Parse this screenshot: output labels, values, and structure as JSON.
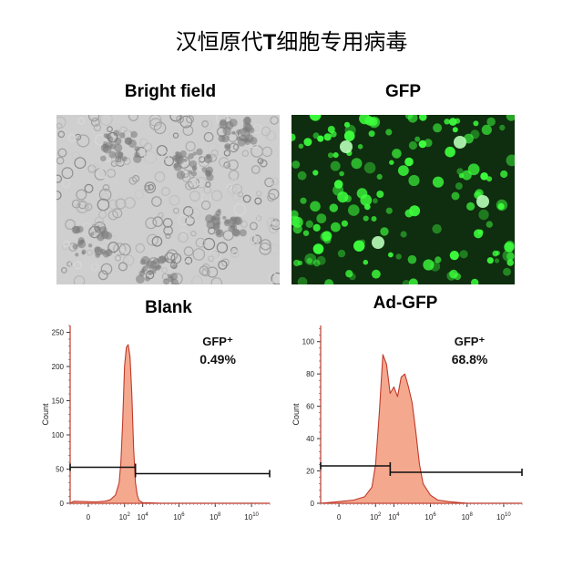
{
  "figure": {
    "title_cn": "汉恒原代",
    "title_t": "T",
    "title_cn2": "细胞专用病毒"
  },
  "panels": {
    "bright_field": {
      "label": "Bright field"
    },
    "gfp": {
      "label": "GFP"
    },
    "blank": {
      "label": "Blank"
    },
    "ad_gfp": {
      "label": "Ad-GFP"
    }
  },
  "colors": {
    "fill": "#f4a98f",
    "line": "#c0392b",
    "axis": "#c0392b",
    "gfp_bg": "#0f2d0f",
    "gfp_cell": "#3dff3d",
    "bf_bg": "#cfcfcf"
  },
  "chart_data": [
    {
      "type": "area",
      "name": "blank",
      "title": "Blank",
      "annotation_label": "GFP⁺",
      "annotation_value": "0.49%",
      "ylabel": "Count",
      "y_ticks": [
        "0",
        "50",
        "100",
        "150",
        "200",
        "250"
      ],
      "ylim": [
        0,
        260
      ],
      "xlim": [
        -0.5,
        5.0
      ],
      "x_ticks": [
        {
          "pos": 0,
          "base": "0",
          "exp": ""
        },
        {
          "pos": 1,
          "base": "10",
          "exp": "2"
        },
        {
          "pos": 1.5,
          "base": "10",
          "exp": "4"
        },
        {
          "pos": 2.5,
          "base": "10",
          "exp": "6"
        },
        {
          "pos": 3.5,
          "base": "10",
          "exp": "8"
        },
        {
          "pos": 4.5,
          "base": "10",
          "exp": "10"
        }
      ],
      "x": [
        -0.5,
        -0.4,
        0.2,
        0.45,
        0.6,
        0.75,
        0.85,
        0.9,
        0.95,
        1.0,
        1.05,
        1.1,
        1.15,
        1.2,
        1.25,
        1.3,
        1.35,
        1.4,
        1.5,
        1.7,
        2.0,
        3.0,
        4.0,
        5.0
      ],
      "y": [
        0,
        3,
        2,
        3,
        5,
        12,
        30,
        60,
        120,
        200,
        228,
        232,
        215,
        160,
        80,
        30,
        12,
        4,
        1,
        0.5,
        0,
        0,
        0,
        0
      ],
      "gate_neg": [
        -0.5,
        1.3
      ],
      "gate_pos": [
        1.3,
        5.0
      ],
      "gate_y": 50
    },
    {
      "type": "area",
      "name": "ad_gfp",
      "title": "Ad-GFP",
      "annotation_label": "GFP⁺",
      "annotation_value": "68.8%",
      "ylabel": "Count",
      "y_ticks": [
        "0",
        "20",
        "40",
        "60",
        "80",
        "100"
      ],
      "ylim": [
        0,
        110
      ],
      "xlim": [
        -0.5,
        5.0
      ],
      "x_ticks": [
        {
          "pos": 0,
          "base": "0",
          "exp": ""
        },
        {
          "pos": 1,
          "base": "10",
          "exp": "2"
        },
        {
          "pos": 1.5,
          "base": "10",
          "exp": "4"
        },
        {
          "pos": 2.5,
          "base": "10",
          "exp": "6"
        },
        {
          "pos": 3.5,
          "base": "10",
          "exp": "8"
        },
        {
          "pos": 4.5,
          "base": "10",
          "exp": "10"
        }
      ],
      "x": [
        -0.5,
        0.0,
        0.4,
        0.7,
        0.9,
        1.0,
        1.1,
        1.2,
        1.3,
        1.4,
        1.5,
        1.6,
        1.7,
        1.8,
        1.9,
        2.0,
        2.1,
        2.2,
        2.3,
        2.5,
        2.7,
        3.0,
        3.5,
        4.0,
        5.0
      ],
      "y": [
        0,
        1,
        2,
        4,
        10,
        24,
        55,
        92,
        86,
        68,
        72,
        66,
        78,
        80,
        72,
        62,
        44,
        24,
        12,
        5,
        2,
        1,
        0,
        0,
        0
      ],
      "gate_neg": [
        -0.5,
        1.4
      ],
      "gate_pos": [
        1.4,
        5.0
      ],
      "gate_y": 22
    }
  ]
}
